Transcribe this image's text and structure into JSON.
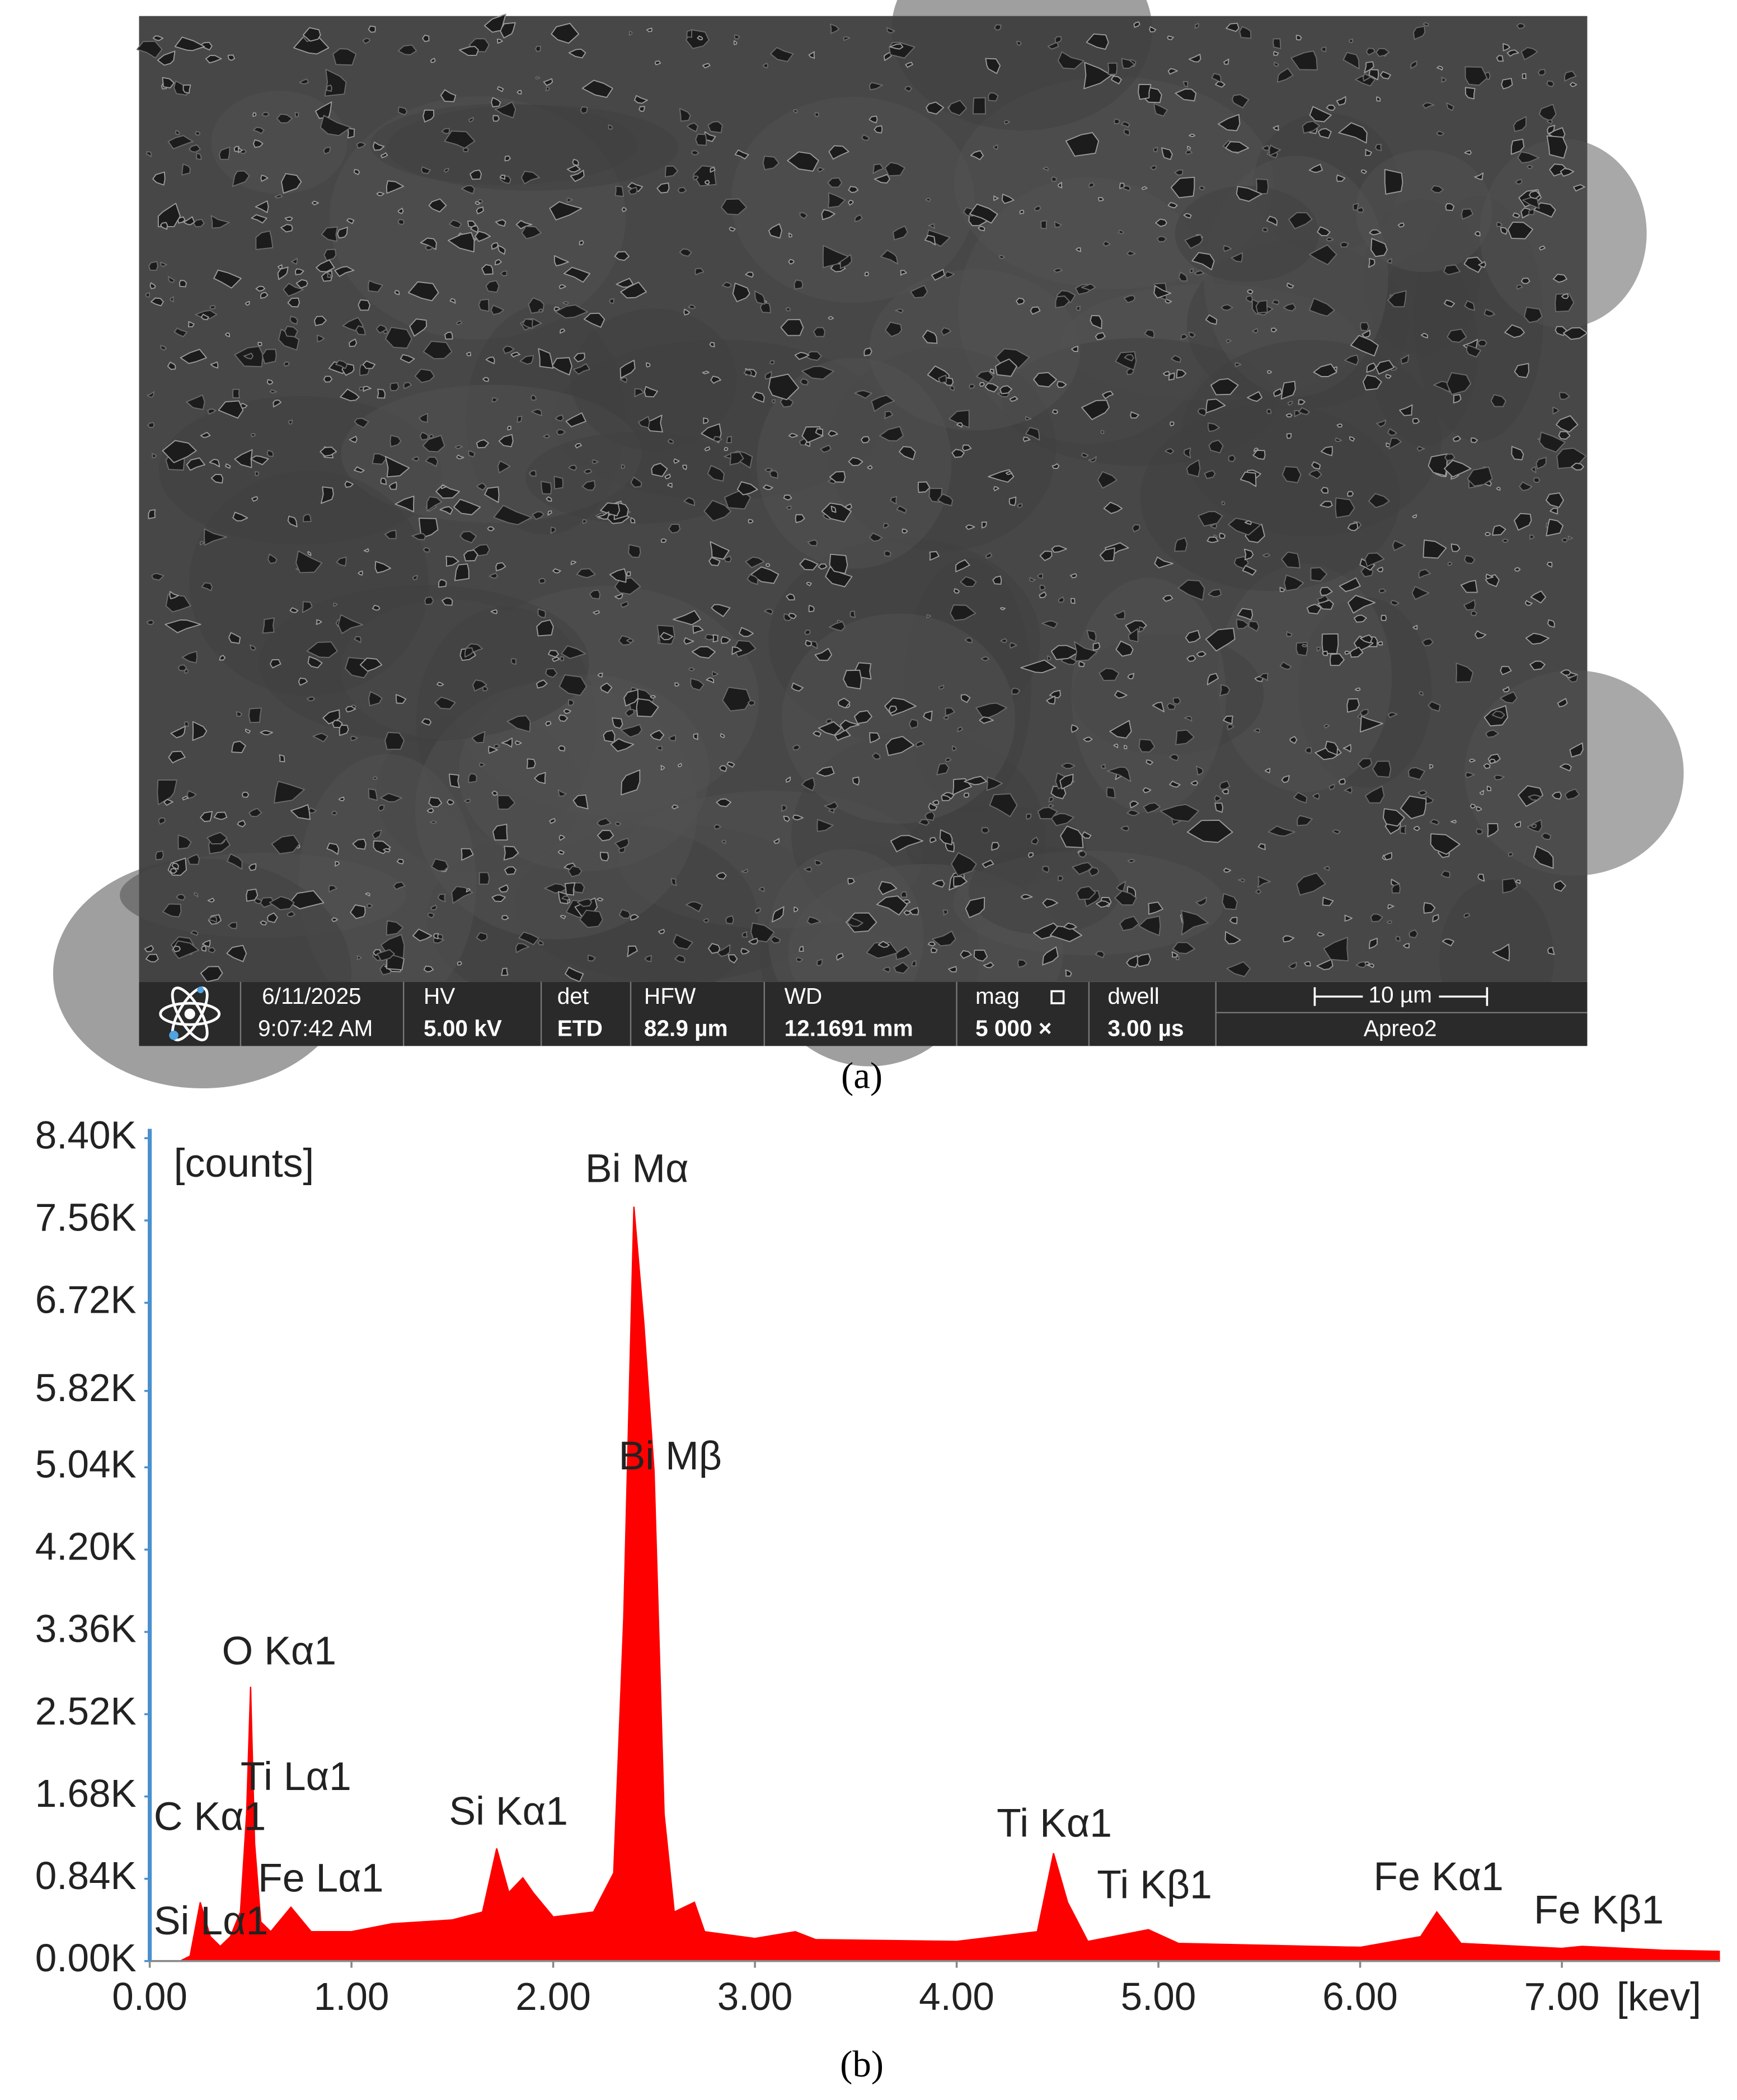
{
  "sem_image": {
    "date": "6/11/2025",
    "time": "9:07:42 AM",
    "fields": [
      {
        "label": "HV",
        "value": "5.00 kV"
      },
      {
        "label": "det",
        "value": "ETD"
      },
      {
        "label": "HFW",
        "value": "82.9 µm"
      },
      {
        "label": "WD",
        "value": "12.1691 mm"
      },
      {
        "label": "mag",
        "value": "5 000 ×"
      },
      {
        "label": "dwell",
        "value": "3.00 µs"
      }
    ],
    "scale_bar": "10 µm",
    "instrument": "Apreo2"
  },
  "captions": [
    "(a)",
    "(b)"
  ],
  "chart_data": {
    "type": "area",
    "y_label": "[counts]",
    "x_label": "[kev]",
    "color": "#ff0000",
    "x": [
      0.15,
      0.2,
      0.25,
      0.3,
      0.35,
      0.4,
      0.45,
      0.48,
      0.5,
      0.52,
      0.55,
      0.6,
      0.7,
      0.8,
      1.0,
      1.2,
      1.5,
      1.65,
      1.72,
      1.78,
      1.85,
      1.9,
      2.0,
      2.2,
      2.3,
      2.35,
      2.4,
      2.45,
      2.5,
      2.55,
      2.6,
      2.7,
      2.75,
      3.0,
      3.2,
      3.3,
      4.0,
      4.4,
      4.48,
      4.55,
      4.65,
      4.9,
      4.95,
      5.1,
      6.0,
      6.3,
      6.38,
      6.5,
      7.0,
      7.1,
      7.5,
      7.78
    ],
    "values": [
      0,
      50,
      600,
      250,
      150,
      250,
      500,
      1500,
      2800,
      1200,
      400,
      300,
      550,
      300,
      300,
      380,
      420,
      500,
      1150,
      700,
      850,
      700,
      450,
      500,
      900,
      3500,
      7700,
      6500,
      5000,
      1500,
      500,
      600,
      300,
      230,
      300,
      220,
      200,
      300,
      1100,
      600,
      200,
      300,
      320,
      180,
      140,
      250,
      500,
      180,
      130,
      150,
      110,
      100
    ],
    "xlim": [
      0,
      7.78
    ],
    "ylim": [
      0,
      8400
    ],
    "xticks": [
      {
        "value": 0,
        "label": "0.00"
      },
      {
        "value": 1,
        "label": "1.00"
      },
      {
        "value": 2,
        "label": "2.00"
      },
      {
        "value": 3,
        "label": "3.00"
      },
      {
        "value": 4,
        "label": "4.00"
      },
      {
        "value": 5,
        "label": "5.00"
      },
      {
        "value": 6,
        "label": "6.00"
      },
      {
        "value": 7,
        "label": "7.00"
      }
    ],
    "yticks": [
      {
        "value": 8400,
        "label": "8.40K"
      },
      {
        "value": 7560,
        "label": "7.56K"
      },
      {
        "value": 6720,
        "label": "6.72K"
      },
      {
        "value": 5820,
        "label": "5.82K"
      },
      {
        "value": 5040,
        "label": "5.04K"
      },
      {
        "value": 4200,
        "label": "4.20K"
      },
      {
        "value": 3360,
        "label": "3.36K"
      },
      {
        "value": 2520,
        "label": "2.52K"
      },
      {
        "value": 1680,
        "label": "1.68K"
      },
      {
        "value": 840,
        "label": "0.84K"
      },
      {
        "value": 0,
        "label": "0.00K"
      }
    ],
    "annotations": [
      "Bi Mα",
      "Bi Mβ",
      "O Kα1",
      "Ti Lα1",
      "C Kα1",
      "Fe Lα1",
      "Si Lα1",
      "Si Kα1",
      "Ti Kα1",
      "Ti Kβ1",
      "Fe Kα1",
      "Fe Kβ1"
    ]
  }
}
